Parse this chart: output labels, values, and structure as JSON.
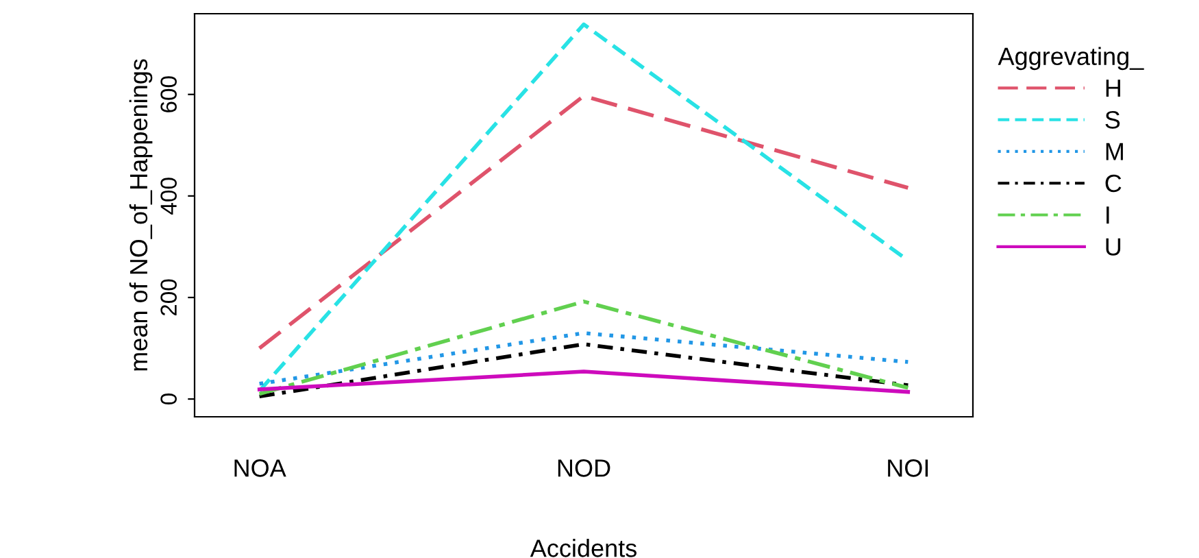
{
  "chart_data": {
    "type": "line",
    "xlabel": "Accidents",
    "ylabel": "mean of NO_of_Happenings",
    "legend_title": "Aggrevating_",
    "legend": "right",
    "categories": [
      "NOA",
      "NOD",
      "NOI"
    ],
    "ylim": [
      -35,
      759
    ],
    "yticks": [
      0,
      200,
      400,
      600
    ],
    "grid": false,
    "marker": "none",
    "series": [
      {
        "name": "H",
        "color": "#df536b",
        "line_style": "longdash",
        "values": [
          100,
          597,
          416
        ]
      },
      {
        "name": "S",
        "color": "#28e2e5",
        "line_style": "dashed",
        "values": [
          16,
          738,
          273
        ]
      },
      {
        "name": "M",
        "color": "#2297e6",
        "line_style": "dotted",
        "values": [
          30,
          130,
          73
        ]
      },
      {
        "name": "C",
        "color": "#000000",
        "line_style": "dashdot",
        "values": [
          5,
          108,
          27
        ]
      },
      {
        "name": "I",
        "color": "#61d04f",
        "line_style": "longdashdot",
        "values": [
          10,
          192,
          22
        ]
      },
      {
        "name": "U",
        "color": "#cd0bbc",
        "line_style": "solid",
        "values": [
          19,
          54,
          14
        ]
      }
    ]
  }
}
